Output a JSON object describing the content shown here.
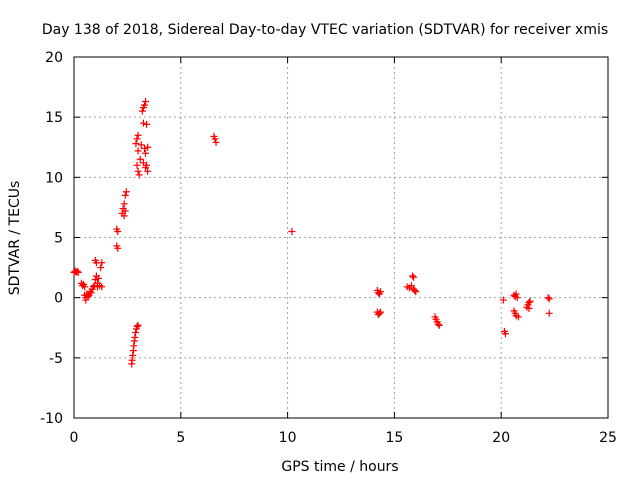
{
  "chart_data": {
    "type": "scatter",
    "title": "Day 138 of 2018, Sidereal Day-to-day VTEC variation (SDTVAR) for receiver xmis",
    "xlabel": "GPS time / hours",
    "ylabel": "SDTVAR / TECUs",
    "xlim": [
      0,
      25
    ],
    "ylim": [
      -10,
      20
    ],
    "xticks": [
      "0",
      "5",
      "10",
      "15",
      "20",
      "25"
    ],
    "yticks": [
      "-10",
      "-5",
      "0",
      "5",
      "10",
      "15",
      "20"
    ],
    "grid": true,
    "marker": "+",
    "color": "#ff0000",
    "series": [
      {
        "name": "SDTVAR",
        "points": [
          [
            0.0,
            2.1
          ],
          [
            0.05,
            2.2
          ],
          [
            0.1,
            2.1
          ],
          [
            0.15,
            2.2
          ],
          [
            0.2,
            2.1
          ],
          [
            0.35,
            1.2
          ],
          [
            0.4,
            1.0
          ],
          [
            0.45,
            1.1
          ],
          [
            0.5,
            0.9
          ],
          [
            0.5,
            0.2
          ],
          [
            0.55,
            0.0
          ],
          [
            0.55,
            -0.2
          ],
          [
            0.6,
            0.3
          ],
          [
            0.65,
            0.1
          ],
          [
            0.7,
            0.2
          ],
          [
            0.75,
            0.5
          ],
          [
            0.8,
            0.4
          ],
          [
            0.85,
            0.7
          ],
          [
            0.9,
            0.9
          ],
          [
            0.95,
            1.0
          ],
          [
            1.0,
            3.1
          ],
          [
            1.05,
            2.9
          ],
          [
            1.0,
            1.5
          ],
          [
            1.05,
            1.8
          ],
          [
            1.1,
            1.2
          ],
          [
            1.1,
            0.9
          ],
          [
            1.15,
            1.6
          ],
          [
            1.2,
            1.0
          ],
          [
            1.25,
            2.5
          ],
          [
            1.3,
            2.9
          ],
          [
            1.3,
            0.9
          ],
          [
            2.0,
            5.7
          ],
          [
            2.05,
            5.5
          ],
          [
            2.0,
            4.3
          ],
          [
            2.05,
            4.1
          ],
          [
            2.25,
            7.0
          ],
          [
            2.3,
            7.4
          ],
          [
            2.35,
            7.8
          ],
          [
            2.35,
            6.8
          ],
          [
            2.4,
            8.5
          ],
          [
            2.45,
            8.8
          ],
          [
            2.4,
            7.2
          ],
          [
            2.7,
            -5.5
          ],
          [
            2.72,
            -5.2
          ],
          [
            2.75,
            -4.8
          ],
          [
            2.78,
            -4.4
          ],
          [
            2.8,
            -4.0
          ],
          [
            2.83,
            -3.6
          ],
          [
            2.85,
            -3.3
          ],
          [
            2.88,
            -2.9
          ],
          [
            2.92,
            -2.6
          ],
          [
            2.95,
            -2.4
          ],
          [
            3.0,
            -2.3
          ],
          [
            2.9,
            12.8
          ],
          [
            2.95,
            13.2
          ],
          [
            3.0,
            13.5
          ],
          [
            3.0,
            12.2
          ],
          [
            2.95,
            11.0
          ],
          [
            3.0,
            10.5
          ],
          [
            3.05,
            10.2
          ],
          [
            3.1,
            11.5
          ],
          [
            3.15,
            12.7
          ],
          [
            3.2,
            15.5
          ],
          [
            3.25,
            15.8
          ],
          [
            3.25,
            14.5
          ],
          [
            3.3,
            16.0
          ],
          [
            3.35,
            16.3
          ],
          [
            3.3,
            12.4
          ],
          [
            3.35,
            12.0
          ],
          [
            3.4,
            14.4
          ],
          [
            3.4,
            11.0
          ],
          [
            3.45,
            10.5
          ],
          [
            3.45,
            12.5
          ],
          [
            3.35,
            10.8
          ],
          [
            3.25,
            11.2
          ],
          [
            6.55,
            13.4
          ],
          [
            6.6,
            13.2
          ],
          [
            6.65,
            12.9
          ],
          [
            10.2,
            5.5
          ],
          [
            14.2,
            0.6
          ],
          [
            14.25,
            0.4
          ],
          [
            14.3,
            0.3
          ],
          [
            14.35,
            0.5
          ],
          [
            14.2,
            -1.2
          ],
          [
            14.25,
            -1.4
          ],
          [
            14.3,
            -1.3
          ],
          [
            14.35,
            -1.2
          ],
          [
            15.6,
            0.9
          ],
          [
            15.7,
            0.8
          ],
          [
            15.8,
            1.0
          ],
          [
            15.85,
            1.8
          ],
          [
            15.9,
            1.7
          ],
          [
            15.9,
            0.7
          ],
          [
            15.95,
            0.6
          ],
          [
            16.0,
            0.5
          ],
          [
            16.9,
            -1.6
          ],
          [
            16.95,
            -1.8
          ],
          [
            17.0,
            -2.0
          ],
          [
            17.05,
            -2.2
          ],
          [
            17.1,
            -2.3
          ],
          [
            20.1,
            -0.2
          ],
          [
            20.15,
            -2.8
          ],
          [
            20.2,
            -3.0
          ],
          [
            20.6,
            0.2
          ],
          [
            20.65,
            0.1
          ],
          [
            20.7,
            0.3
          ],
          [
            20.75,
            0.0
          ],
          [
            20.6,
            -1.1
          ],
          [
            20.65,
            -1.3
          ],
          [
            20.7,
            -1.5
          ],
          [
            20.8,
            -1.6
          ],
          [
            21.2,
            -0.8
          ],
          [
            21.25,
            -0.6
          ],
          [
            21.3,
            -0.4
          ],
          [
            21.35,
            -0.3
          ],
          [
            21.3,
            -0.9
          ],
          [
            22.2,
            0.0
          ],
          [
            22.25,
            -0.1
          ],
          [
            22.25,
            -1.3
          ]
        ]
      }
    ]
  }
}
